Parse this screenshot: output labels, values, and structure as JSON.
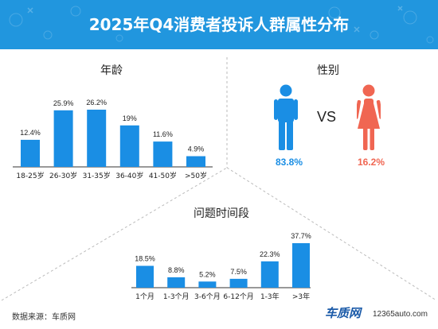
{
  "header": {
    "title": "2025年Q4消费者投诉人群属性分布"
  },
  "colors": {
    "header_bg": "#2196de",
    "bar": "#1a8ee4",
    "male": "#1a8ee4",
    "female": "#f06652",
    "divider": "#bbbbbb"
  },
  "age": {
    "title": "年龄"
  },
  "gender": {
    "title": "性别",
    "vs": "VS",
    "male_label": "83.8%",
    "female_label": "16.2%",
    "male_icon": "male-person-icon",
    "female_icon": "female-person-icon"
  },
  "duration": {
    "title": "问题时间段"
  },
  "footer": {
    "source": "数据来源：车质网",
    "logo_text": "车质网",
    "url": "12365auto.com"
  },
  "chart_data": [
    {
      "type": "bar",
      "title": "年龄",
      "categories": [
        "18-25岁",
        "26-30岁",
        "31-35岁",
        "36-40岁",
        "41-50岁",
        ">50岁"
      ],
      "values": [
        12.4,
        25.9,
        26.2,
        19,
        11.6,
        4.9
      ],
      "labels": [
        "12.4%",
        "25.9%",
        "26.2%",
        "19%",
        "11.6%",
        "4.9%"
      ],
      "unit": "%",
      "grid": false
    },
    {
      "type": "bar",
      "title": "性别",
      "categories": [
        "男",
        "女"
      ],
      "values": [
        83.8,
        16.2
      ],
      "labels": [
        "83.8%",
        "16.2%"
      ],
      "unit": "%"
    },
    {
      "type": "bar",
      "title": "问题时间段",
      "categories": [
        "1个月",
        "1-3个月",
        "3-6个月",
        "6-12个月",
        "1-3年",
        ">3年"
      ],
      "values": [
        18.5,
        8.8,
        5.2,
        7.5,
        22.3,
        37.7
      ],
      "labels": [
        "18.5%",
        "8.8%",
        "5.2%",
        "7.5%",
        "22.3%",
        "37.7%"
      ],
      "unit": "%",
      "grid": false
    }
  ]
}
